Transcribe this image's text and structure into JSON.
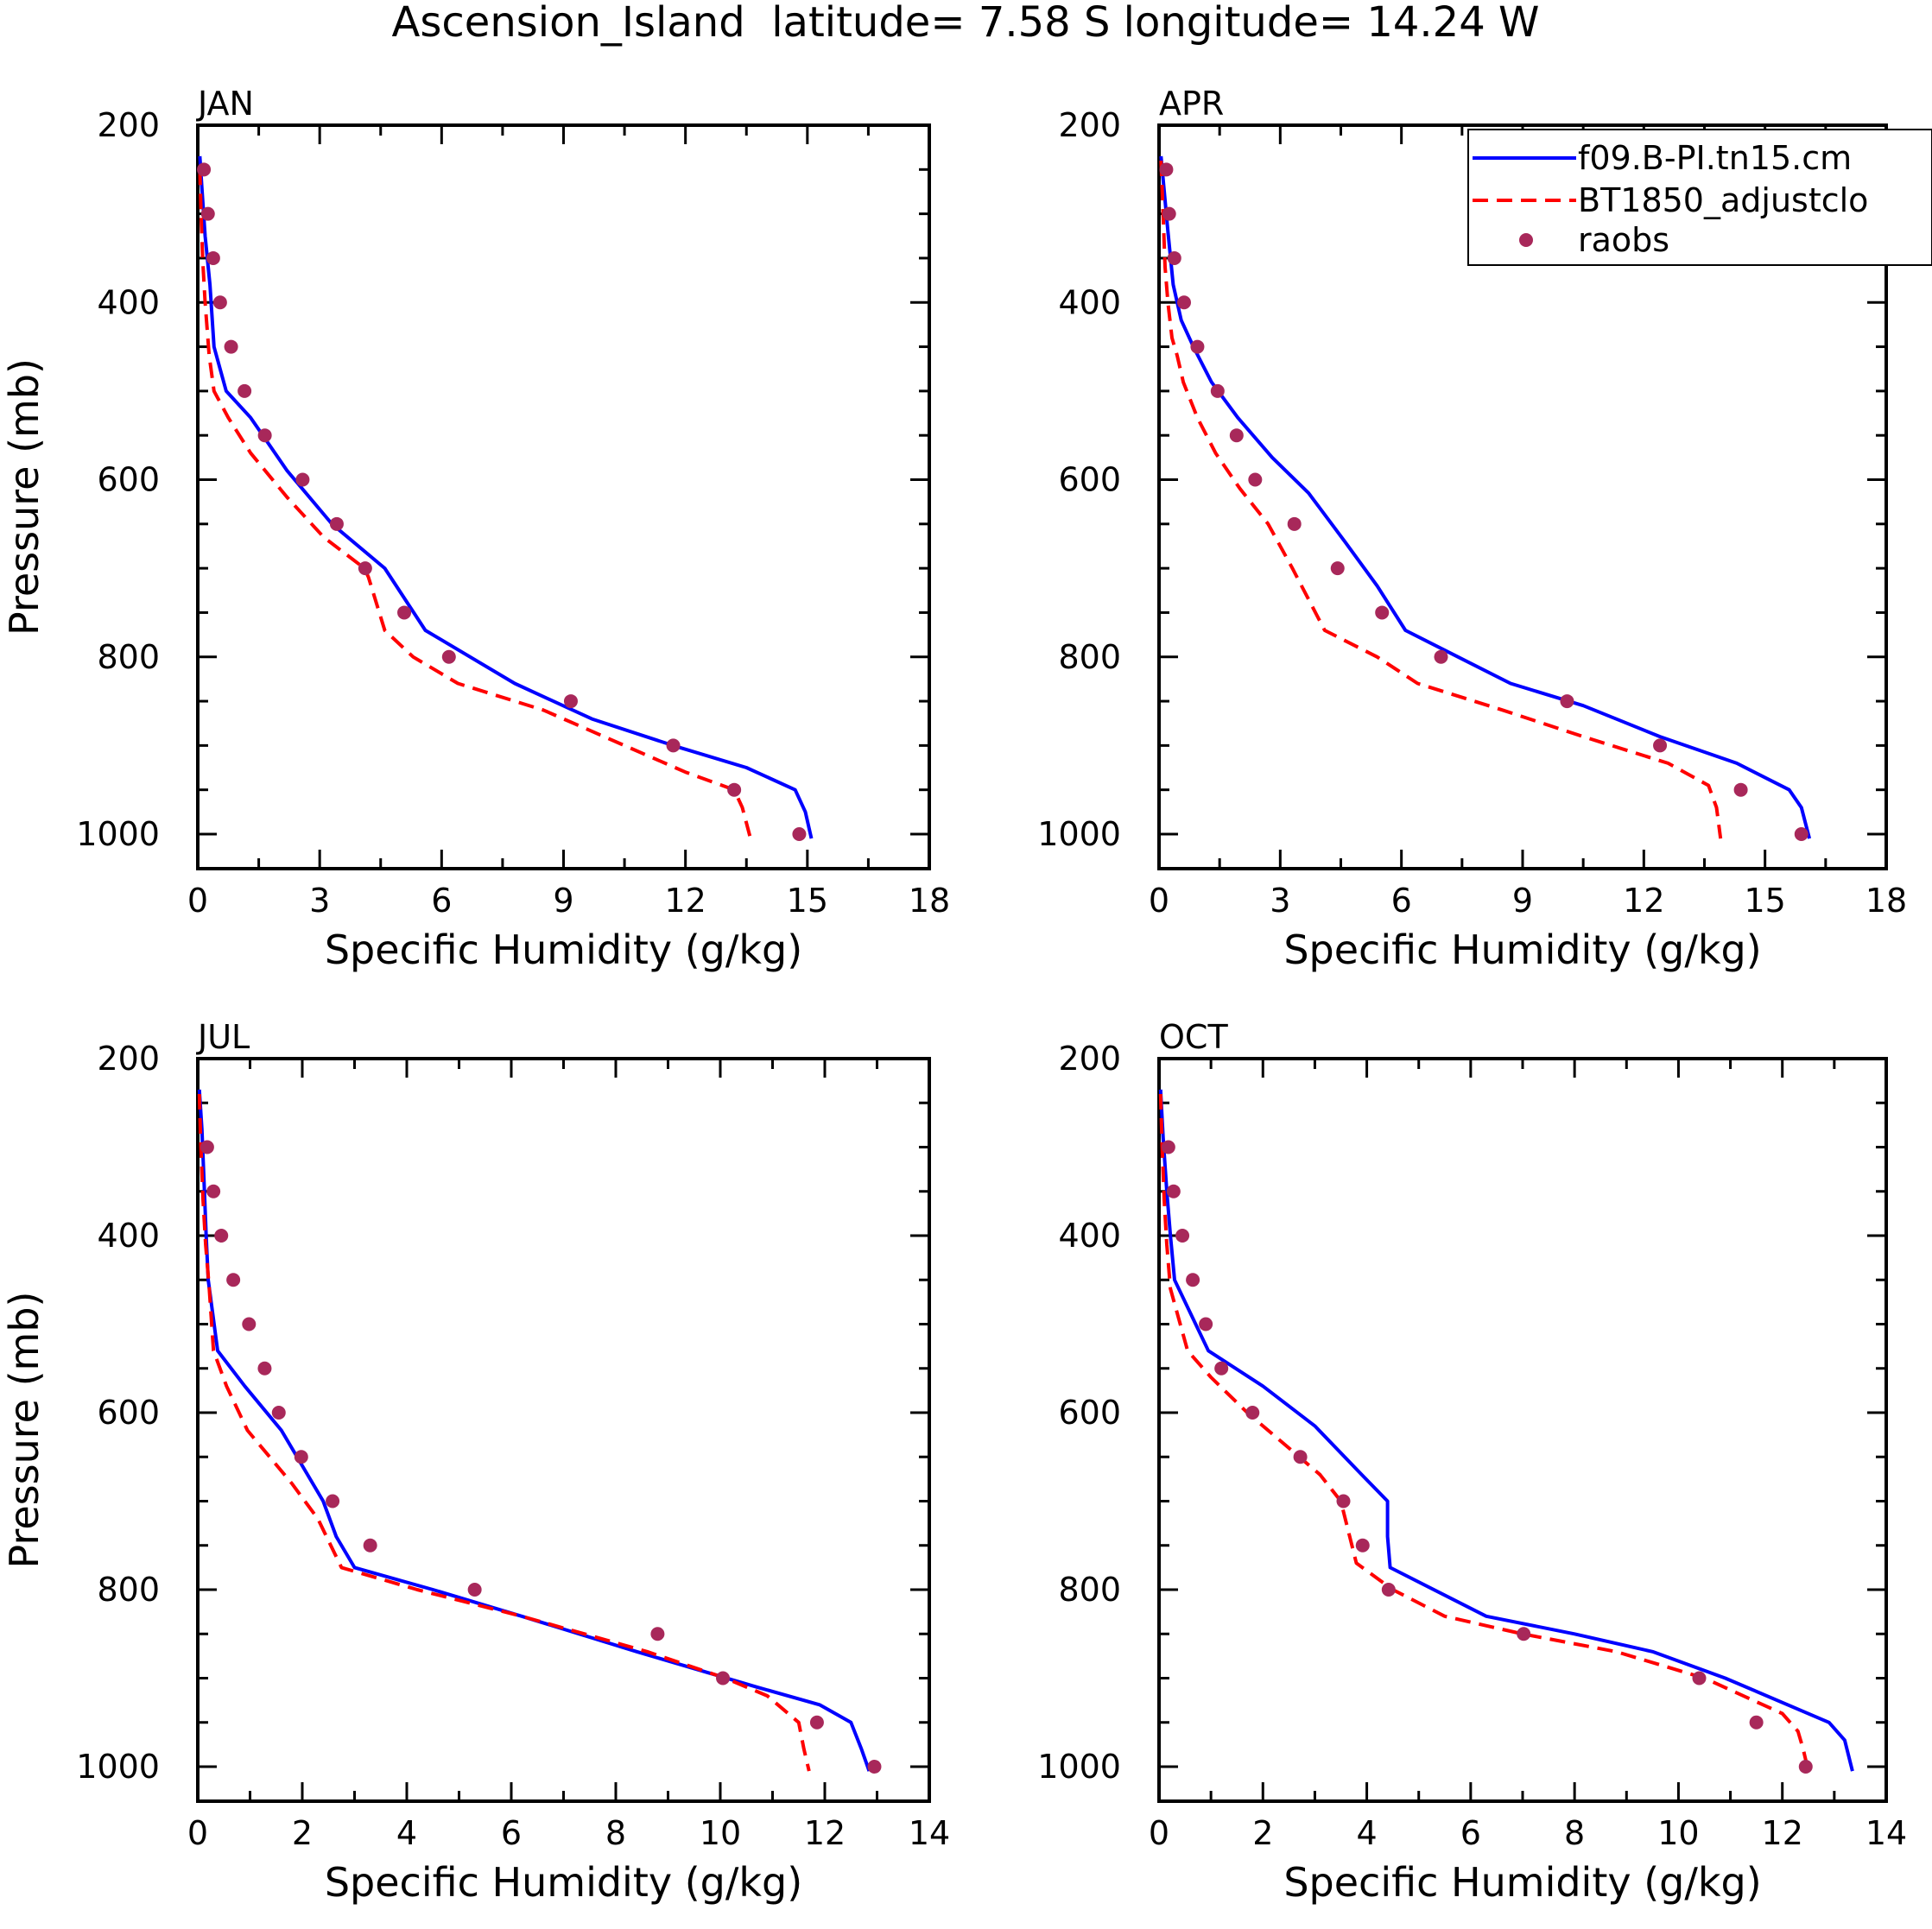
{
  "figure": {
    "title": "Ascension_Island  latitude= 7.58 S longitude= 14.24 W"
  },
  "colors": {
    "model_a": "#0000ff",
    "model_b": "#ff0000",
    "raobs": "#a8285a",
    "axes": "#000000"
  },
  "legend": {
    "entries": [
      {
        "label": "f09.B-PI.tn15.cm",
        "style": "solid"
      },
      {
        "label": "BT1850_adjustclo",
        "style": "dashed"
      },
      {
        "label": "raobs",
        "style": "dot"
      }
    ]
  },
  "chart_data": [
    {
      "type": "line",
      "panel_label": "JAN",
      "xlabel": "Specific Humidity (g/kg)",
      "ylabel": "Pressure (mb)",
      "xlim": [
        0,
        18
      ],
      "xticks": [
        0,
        3,
        6,
        9,
        12,
        15,
        18
      ],
      "ylim": [
        1000,
        200
      ],
      "yticks": [
        200,
        400,
        600,
        800,
        1000
      ],
      "series": [
        {
          "name": "f09.B-PI.tn15.cm",
          "color": "#0000ff",
          "style": "solid",
          "x": [
            0.05,
            0.1,
            0.18,
            0.3,
            0.4,
            0.7,
            1.3,
            2.2,
            3.3,
            4.6,
            5.6,
            7.8,
            9.7,
            11.7,
            13.5,
            14.7,
            14.95,
            15.1
          ],
          "y": [
            235,
            270,
            325,
            380,
            450,
            500,
            530,
            590,
            650,
            700,
            770,
            830,
            870,
            900,
            925,
            950,
            975,
            1005
          ]
        },
        {
          "name": "BT1850_adjustclo",
          "color": "#ff0000",
          "style": "dashed",
          "x": [
            0.05,
            0.08,
            0.12,
            0.18,
            0.28,
            0.4,
            0.75,
            1.3,
            2.2,
            3.1,
            4.1,
            4.2,
            4.6,
            5.3,
            6.4,
            8.5,
            10.5,
            12.0,
            13.2,
            13.4,
            13.6
          ],
          "y": [
            250,
            300,
            350,
            400,
            460,
            500,
            530,
            570,
            620,
            665,
            700,
            710,
            770,
            800,
            830,
            860,
            900,
            930,
            950,
            970,
            1005
          ]
        },
        {
          "name": "raobs",
          "color": "#a8285a",
          "style": "dot",
          "x": [
            0.15,
            0.25,
            0.38,
            0.55,
            0.82,
            1.15,
            1.65,
            2.58,
            3.42,
            4.12,
            5.08,
            6.18,
            9.18,
            11.7,
            13.2,
            14.8
          ],
          "y": [
            250,
            300,
            350,
            400,
            450,
            500,
            550,
            600,
            650,
            700,
            750,
            800,
            850,
            900,
            950,
            1000
          ]
        }
      ]
    },
    {
      "type": "line",
      "panel_label": "APR",
      "xlabel": "Specific Humidity (g/kg)",
      "ylabel": "",
      "xlim": [
        0,
        18
      ],
      "xticks": [
        0,
        3,
        6,
        9,
        12,
        15,
        18
      ],
      "ylim": [
        1000,
        200
      ],
      "yticks": [
        200,
        400,
        600,
        800,
        1000
      ],
      "series": [
        {
          "name": "f09.B-PI.tn15.cm",
          "color": "#0000ff",
          "style": "solid",
          "x": [
            0.05,
            0.12,
            0.22,
            0.35,
            0.55,
            0.85,
            1.3,
            1.95,
            2.8,
            3.7,
            4.6,
            5.4,
            6.1,
            7.4,
            8.7,
            10.5,
            12.4,
            14.3,
            15.6,
            15.9,
            16.1
          ],
          "y": [
            235,
            270,
            320,
            380,
            420,
            450,
            490,
            530,
            575,
            615,
            670,
            720,
            770,
            800,
            830,
            855,
            890,
            920,
            950,
            970,
            1005
          ]
        },
        {
          "name": "BT1850_adjustclo",
          "color": "#ff0000",
          "style": "dashed",
          "x": [
            0.05,
            0.1,
            0.15,
            0.22,
            0.32,
            0.45,
            0.6,
            0.95,
            1.4,
            2.0,
            2.7,
            3.3,
            4.1,
            5.4,
            6.4,
            8.5,
            10.5,
            12.6,
            13.6,
            13.8,
            13.9
          ],
          "y": [
            240,
            300,
            360,
            400,
            440,
            460,
            490,
            530,
            570,
            610,
            650,
            700,
            770,
            800,
            830,
            860,
            890,
            920,
            945,
            970,
            1005
          ]
        },
        {
          "name": "raobs",
          "color": "#a8285a",
          "style": "dot",
          "x": [
            0.18,
            0.25,
            0.38,
            0.62,
            0.95,
            1.45,
            1.92,
            2.38,
            3.35,
            4.42,
            5.52,
            6.98,
            10.1,
            12.4,
            14.4,
            15.9
          ],
          "y": [
            250,
            300,
            350,
            400,
            450,
            500,
            550,
            600,
            650,
            700,
            750,
            800,
            850,
            900,
            950,
            1000
          ]
        }
      ]
    },
    {
      "type": "line",
      "panel_label": "JUL",
      "xlabel": "Specific Humidity (g/kg)",
      "ylabel": "Pressure (mb)",
      "xlim": [
        0,
        14
      ],
      "xticks": [
        0,
        2,
        4,
        6,
        8,
        10,
        12,
        14
      ],
      "ylim": [
        1000,
        200
      ],
      "yticks": [
        200,
        400,
        600,
        800,
        1000
      ],
      "series": [
        {
          "name": "f09.B-PI.tn15.cm",
          "color": "#0000ff",
          "style": "solid",
          "x": [
            0.03,
            0.08,
            0.12,
            0.16,
            0.2,
            0.38,
            0.9,
            1.6,
            2.4,
            2.65,
            3.0,
            4.5,
            6.2,
            8.4,
            10.7,
            11.9,
            12.5,
            12.7,
            12.85
          ],
          "y": [
            235,
            280,
            340,
            400,
            450,
            530,
            570,
            620,
            700,
            740,
            775,
            800,
            830,
            870,
            910,
            930,
            950,
            980,
            1005
          ]
        },
        {
          "name": "BT1850_adjustclo",
          "color": "#ff0000",
          "style": "dashed",
          "x": [
            0.03,
            0.06,
            0.1,
            0.15,
            0.22,
            0.3,
            0.55,
            0.95,
            1.8,
            2.3,
            2.75,
            4.2,
            6.2,
            8.6,
            10.1,
            10.9,
            11.5,
            11.6,
            11.7
          ],
          "y": [
            240,
            300,
            360,
            410,
            460,
            530,
            570,
            620,
            680,
            720,
            775,
            800,
            830,
            870,
            900,
            920,
            950,
            980,
            1005
          ]
        },
        {
          "name": "raobs",
          "color": "#a8285a",
          "style": "dot",
          "x": [
            0.18,
            0.3,
            0.45,
            0.68,
            0.98,
            1.28,
            1.55,
            1.98,
            2.58,
            3.3,
            5.3,
            8.8,
            10.05,
            11.85,
            12.95
          ],
          "y": [
            300,
            350,
            400,
            450,
            500,
            550,
            600,
            650,
            700,
            750,
            800,
            850,
            900,
            950,
            1000
          ]
        }
      ]
    },
    {
      "type": "line",
      "panel_label": "OCT",
      "xlabel": "Specific Humidity (g/kg)",
      "ylabel": "",
      "xlim": [
        0,
        14
      ],
      "xticks": [
        0,
        2,
        4,
        6,
        8,
        10,
        12,
        14
      ],
      "ylim": [
        1000,
        200
      ],
      "yticks": [
        200,
        400,
        600,
        800,
        1000
      ],
      "series": [
        {
          "name": "f09.B-PI.tn15.cm",
          "color": "#0000ff",
          "style": "solid",
          "x": [
            0.03,
            0.08,
            0.15,
            0.22,
            0.3,
            0.95,
            2.0,
            3.0,
            3.9,
            4.4,
            4.4,
            4.45,
            6.3,
            8.0,
            9.5,
            10.9,
            12.9,
            13.2,
            13.35
          ],
          "y": [
            235,
            290,
            350,
            400,
            450,
            530,
            570,
            615,
            670,
            700,
            740,
            775,
            830,
            850,
            870,
            900,
            950,
            970,
            1005
          ]
        },
        {
          "name": "BT1850_adjustclo",
          "color": "#ff0000",
          "style": "dashed",
          "x": [
            0.03,
            0.06,
            0.1,
            0.15,
            0.22,
            0.55,
            1.0,
            1.7,
            2.5,
            3.1,
            3.5,
            3.8,
            4.5,
            5.5,
            7.0,
            8.8,
            10.5,
            12.0,
            12.3,
            12.4,
            12.5
          ],
          "y": [
            240,
            300,
            360,
            410,
            460,
            530,
            560,
            600,
            640,
            670,
            700,
            770,
            800,
            830,
            850,
            870,
            900,
            940,
            960,
            980,
            1005
          ]
        },
        {
          "name": "raobs",
          "color": "#a8285a",
          "style": "dot",
          "x": [
            0.18,
            0.28,
            0.45,
            0.65,
            0.9,
            1.2,
            1.8,
            2.72,
            3.55,
            3.92,
            4.42,
            7.02,
            10.4,
            11.5,
            12.45
          ],
          "y": [
            300,
            350,
            400,
            450,
            500,
            550,
            600,
            650,
            700,
            750,
            800,
            850,
            900,
            950,
            1000
          ]
        }
      ]
    }
  ]
}
